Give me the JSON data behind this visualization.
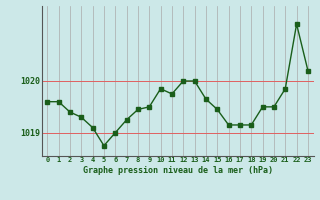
{
  "x": [
    0,
    1,
    2,
    3,
    4,
    5,
    6,
    7,
    8,
    9,
    10,
    11,
    12,
    13,
    14,
    15,
    16,
    17,
    18,
    19,
    20,
    21,
    22,
    23
  ],
  "y": [
    1019.6,
    1019.6,
    1019.4,
    1019.3,
    1019.1,
    1018.75,
    1019.0,
    1019.25,
    1019.45,
    1019.5,
    1019.85,
    1019.75,
    1020.0,
    1020.0,
    1019.65,
    1019.45,
    1019.15,
    1019.15,
    1019.15,
    1019.5,
    1019.5,
    1019.85,
    1021.1,
    1020.2
  ],
  "title": "Graphe pression niveau de la mer (hPa)",
  "bg_color": "#cce8e8",
  "line_color": "#1a5e1a",
  "ylim": [
    1018.55,
    1021.45
  ],
  "yticks": [
    1019,
    1020
  ],
  "xlim": [
    -0.5,
    23.5
  ]
}
